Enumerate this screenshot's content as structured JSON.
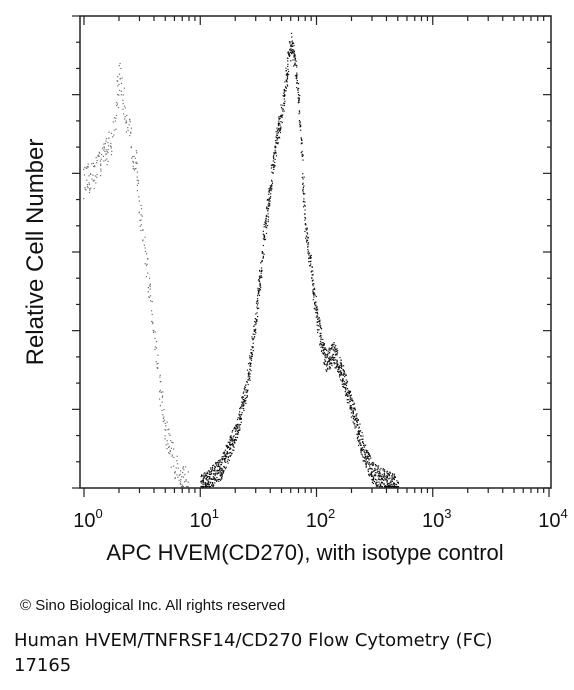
{
  "chart_data": {
    "type": "area",
    "x_scale": "log",
    "xlim": [
      1,
      10000
    ],
    "xlabel": "APC HVEM(CD270), with isotype control",
    "ylabel": "Relative Cell Number",
    "x_ticks": [
      {
        "base": "10",
        "exp": "0"
      },
      {
        "base": "10",
        "exp": "1"
      },
      {
        "base": "10",
        "exp": "2"
      },
      {
        "base": "10",
        "exp": "3"
      },
      {
        "base": "10",
        "exp": "4"
      }
    ],
    "grid": false,
    "series": [
      {
        "role": "isotype control",
        "style": "sparse gray dots",
        "color": "#6e6e6e",
        "x": [
          1.0,
          1.2,
          1.5,
          1.8,
          2.0,
          2.2,
          2.5,
          2.8,
          3.0,
          3.3,
          3.6,
          4.0,
          4.5,
          5.0,
          6.0,
          7.0,
          8.0
        ],
        "y": [
          0.68,
          0.7,
          0.74,
          0.8,
          0.92,
          0.85,
          0.78,
          0.72,
          0.62,
          0.52,
          0.44,
          0.34,
          0.22,
          0.12,
          0.05,
          0.02,
          0.0
        ]
      },
      {
        "role": "HVEM stained",
        "style": "dense dark dots",
        "color": "#111111",
        "x": [
          10,
          15,
          20,
          25,
          30,
          35,
          40,
          45,
          50,
          55,
          60,
          65,
          70,
          75,
          80,
          90,
          100,
          110,
          120,
          140,
          160,
          180,
          200,
          250,
          300,
          400,
          500
        ],
        "y": [
          0.0,
          0.04,
          0.12,
          0.22,
          0.38,
          0.55,
          0.68,
          0.78,
          0.84,
          0.92,
          1.0,
          0.95,
          0.86,
          0.72,
          0.58,
          0.48,
          0.38,
          0.32,
          0.28,
          0.3,
          0.26,
          0.22,
          0.18,
          0.08,
          0.03,
          0.01,
          0.0
        ]
      }
    ]
  },
  "footer": {
    "copyright": "© Sino Biological Inc. All rights reserved",
    "caption_line1": "Human HVEM/TNFRSF14/CD270 Flow Cytometry (FC)",
    "caption_line2": "17165"
  }
}
